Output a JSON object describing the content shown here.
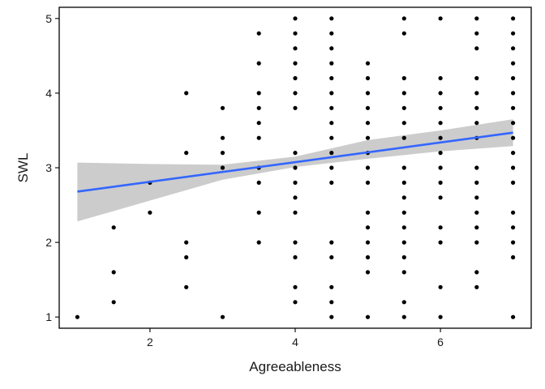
{
  "chart_data": {
    "type": "scatter",
    "xlabel": "Agreeableness",
    "ylabel": "SWL",
    "xlim": [
      0.75,
      7.25
    ],
    "ylim": [
      0.85,
      5.15
    ],
    "xticks": [
      2,
      4,
      6
    ],
    "yticks": [
      1,
      2,
      3,
      4,
      5
    ],
    "grid": false,
    "legend": "none",
    "colors": {
      "points": "#000000",
      "fit_line": "#3366ff",
      "confidence_band": "#cccccc",
      "axis": "#000000"
    },
    "series": [
      {
        "kind": "points",
        "points": [
          [
            1,
            1
          ],
          [
            1.5,
            2.2
          ],
          [
            1.5,
            1.6
          ],
          [
            1.5,
            1.2
          ],
          [
            2,
            2.8
          ],
          [
            2,
            2.4
          ],
          [
            2.5,
            4
          ],
          [
            2.5,
            3.2
          ],
          [
            2.5,
            2
          ],
          [
            2.5,
            1.8
          ],
          [
            2.5,
            1.4
          ],
          [
            3,
            3.8
          ],
          [
            3,
            3.4
          ],
          [
            3,
            3.2
          ],
          [
            3,
            3
          ],
          [
            3,
            1
          ],
          [
            3.5,
            4.8
          ],
          [
            3.5,
            4.4
          ],
          [
            3.5,
            4
          ],
          [
            3.5,
            3.8
          ],
          [
            3.5,
            3.6
          ],
          [
            3.5,
            3.4
          ],
          [
            3.5,
            3
          ],
          [
            3.5,
            2.8
          ],
          [
            3.5,
            2.4
          ],
          [
            3.5,
            2
          ],
          [
            4,
            5
          ],
          [
            4,
            4.8
          ],
          [
            4,
            4.6
          ],
          [
            4,
            4.4
          ],
          [
            4,
            4.2
          ],
          [
            4,
            4
          ],
          [
            4,
            3.8
          ],
          [
            4,
            3.2
          ],
          [
            4,
            3
          ],
          [
            4,
            2.8
          ],
          [
            4,
            2.6
          ],
          [
            4,
            2.4
          ],
          [
            4,
            2
          ],
          [
            4,
            1.8
          ],
          [
            4,
            1.4
          ],
          [
            4,
            1.2
          ],
          [
            4.5,
            5
          ],
          [
            4.5,
            4.8
          ],
          [
            4.5,
            4.6
          ],
          [
            4.5,
            4.4
          ],
          [
            4.5,
            4.2
          ],
          [
            4.5,
            4
          ],
          [
            4.5,
            3.8
          ],
          [
            4.5,
            3.6
          ],
          [
            4.5,
            3.4
          ],
          [
            4.5,
            3.2
          ],
          [
            4.5,
            3
          ],
          [
            4.5,
            2.8
          ],
          [
            4.5,
            2
          ],
          [
            4.5,
            1.8
          ],
          [
            4.5,
            1.4
          ],
          [
            4.5,
            1.2
          ],
          [
            4.5,
            1
          ],
          [
            5,
            4.4
          ],
          [
            5,
            4.2
          ],
          [
            5,
            4
          ],
          [
            5,
            3.8
          ],
          [
            5,
            3.6
          ],
          [
            5,
            3.4
          ],
          [
            5,
            3.2
          ],
          [
            5,
            3
          ],
          [
            5,
            2.8
          ],
          [
            5,
            2.4
          ],
          [
            5,
            2.2
          ],
          [
            5,
            2
          ],
          [
            5,
            1.8
          ],
          [
            5,
            1.6
          ],
          [
            5,
            1
          ],
          [
            5.5,
            5
          ],
          [
            5.5,
            4.8
          ],
          [
            5.5,
            4.2
          ],
          [
            5.5,
            4
          ],
          [
            5.5,
            3.8
          ],
          [
            5.5,
            3.6
          ],
          [
            5.5,
            3.4
          ],
          [
            5.5,
            3
          ],
          [
            5.5,
            2.8
          ],
          [
            5.5,
            2.6
          ],
          [
            5.5,
            2.4
          ],
          [
            5.5,
            2.2
          ],
          [
            5.5,
            2
          ],
          [
            5.5,
            1.8
          ],
          [
            5.5,
            1.6
          ],
          [
            5.5,
            1.2
          ],
          [
            5.5,
            1
          ],
          [
            6,
            5
          ],
          [
            6,
            4.2
          ],
          [
            6,
            4
          ],
          [
            6,
            3.8
          ],
          [
            6,
            3.6
          ],
          [
            6,
            3.4
          ],
          [
            6,
            3.2
          ],
          [
            6,
            3
          ],
          [
            6,
            2.8
          ],
          [
            6,
            2.6
          ],
          [
            6,
            2.2
          ],
          [
            6,
            2
          ],
          [
            6,
            1.4
          ],
          [
            6,
            1
          ],
          [
            6.5,
            5
          ],
          [
            6.5,
            4.8
          ],
          [
            6.5,
            4.6
          ],
          [
            6.5,
            4.2
          ],
          [
            6.5,
            4
          ],
          [
            6.5,
            3.8
          ],
          [
            6.5,
            3.6
          ],
          [
            6.5,
            3.4
          ],
          [
            6.5,
            3
          ],
          [
            6.5,
            2.8
          ],
          [
            6.5,
            2.6
          ],
          [
            6.5,
            2.4
          ],
          [
            6.5,
            2.2
          ],
          [
            6.5,
            2
          ],
          [
            6.5,
            1.6
          ],
          [
            6.5,
            1.4
          ],
          [
            7,
            5
          ],
          [
            7,
            4.8
          ],
          [
            7,
            4.6
          ],
          [
            7,
            4.4
          ],
          [
            7,
            4.2
          ],
          [
            7,
            4
          ],
          [
            7,
            3.8
          ],
          [
            7,
            3.6
          ],
          [
            7,
            3.4
          ],
          [
            7,
            3.2
          ],
          [
            7,
            3
          ],
          [
            7,
            2.8
          ],
          [
            7,
            2.4
          ],
          [
            7,
            2.2
          ],
          [
            7,
            2
          ],
          [
            7,
            1.8
          ],
          [
            7,
            1
          ]
        ]
      },
      {
        "kind": "fit_line",
        "x": [
          1,
          7
        ],
        "y": [
          2.68,
          3.47
        ]
      },
      {
        "kind": "confidence_band",
        "x": [
          1,
          2,
          3,
          4,
          5,
          6,
          7
        ],
        "lower": [
          2.28,
          2.56,
          2.84,
          3.01,
          3.12,
          3.22,
          3.29
        ],
        "upper": [
          3.07,
          3.05,
          3.04,
          3.15,
          3.37,
          3.5,
          3.65
        ]
      }
    ]
  }
}
